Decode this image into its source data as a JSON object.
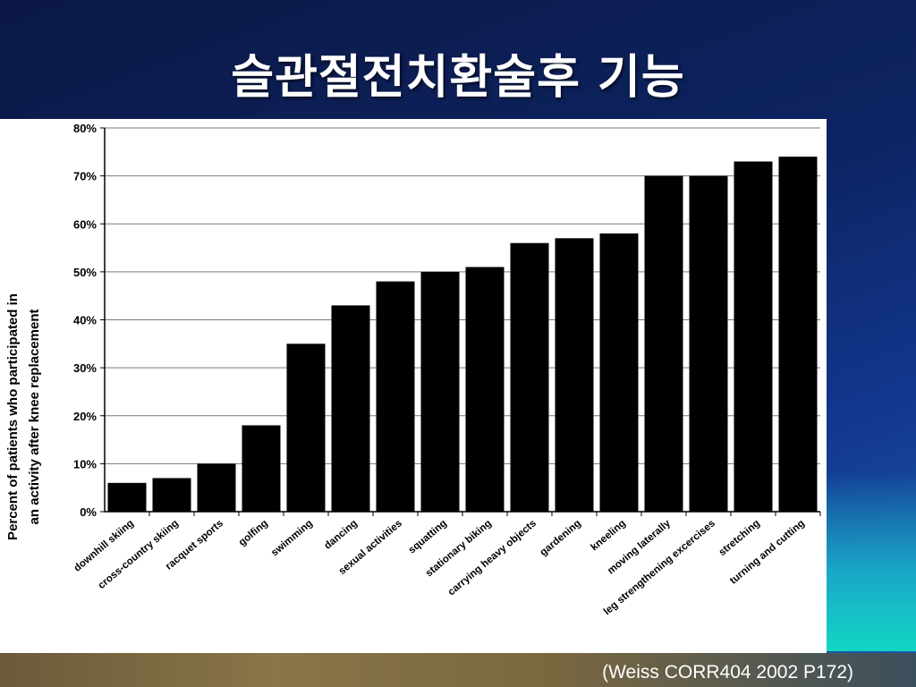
{
  "slide": {
    "title": "슬관절전치환술후 기능",
    "citation": "(Weiss CORR404 2002 P172)"
  },
  "chart_data": {
    "type": "bar",
    "title": "",
    "xlabel": "",
    "ylabel": "Percent of patients who participated in an activity after knee replacement",
    "ylabel_lines": [
      "Percent of patients who participated in",
      "an activity after knee replacement"
    ],
    "ylim": [
      0,
      80
    ],
    "yticks": [
      "0%",
      "10%",
      "20%",
      "30%",
      "40%",
      "50%",
      "60%",
      "70%",
      "80%"
    ],
    "grid": true,
    "legend": "none",
    "bar_color": "#000000",
    "categories": [
      "downhill skiing",
      "cross-country skiing",
      "racquet sports",
      "golfing",
      "swimming",
      "dancing",
      "sexual activities",
      "squatting",
      "stationary biking",
      "carrying heavy objects",
      "gardening",
      "kneeling",
      "moving laterally",
      "leg strengthening excercises",
      "stretching",
      "turning and cutting"
    ],
    "values": [
      6,
      7,
      10,
      18,
      35,
      43,
      48,
      50,
      51,
      56,
      57,
      58,
      70,
      70,
      73,
      74
    ]
  }
}
